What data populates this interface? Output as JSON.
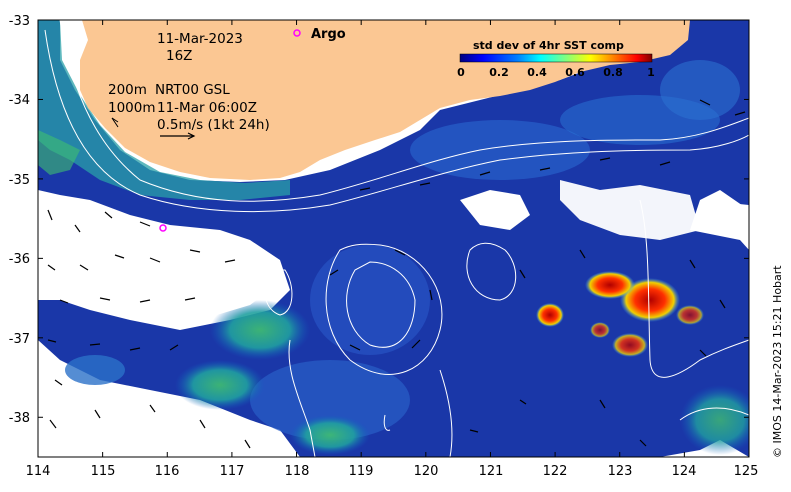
{
  "annotations": {
    "date": "11-Mar-2023",
    "hour": "16Z",
    "contour_line1": "200m",
    "contour_line2": "1000m",
    "nrt_line1": "NRT00 GSL",
    "nrt_line2": "11-Mar 06:00Z",
    "scale_vector": "0.5m/s (1kt 24h)",
    "argo_label": "Argo",
    "credit": "© IMOS 14-Mar-2023 15:21 Hobart"
  },
  "colorbar": {
    "title": "std dev of 4hr SST comp",
    "ticks": [
      "0",
      "0.2",
      "0.4",
      "0.6",
      "0.8",
      "1"
    ],
    "colors": [
      "#00007f",
      "#0000ff",
      "#0080ff",
      "#00ffff",
      "#80ff80",
      "#ffff00",
      "#ff8000",
      "#ff0000",
      "#7f0000"
    ]
  },
  "axes": {
    "x_ticks": [
      "114",
      "115",
      "116",
      "117",
      "118",
      "119",
      "120",
      "121",
      "122",
      "123",
      "124",
      "125"
    ],
    "y_ticks": [
      "-33",
      "-34",
      "-35",
      "-36",
      "-37",
      "-38"
    ],
    "x_range": [
      114,
      125
    ],
    "y_range": [
      -38.5,
      -33
    ]
  },
  "colors": {
    "land": "#fbc793",
    "argo_marker": "#ff00ff",
    "ocean_base": "#1a37a8"
  }
}
